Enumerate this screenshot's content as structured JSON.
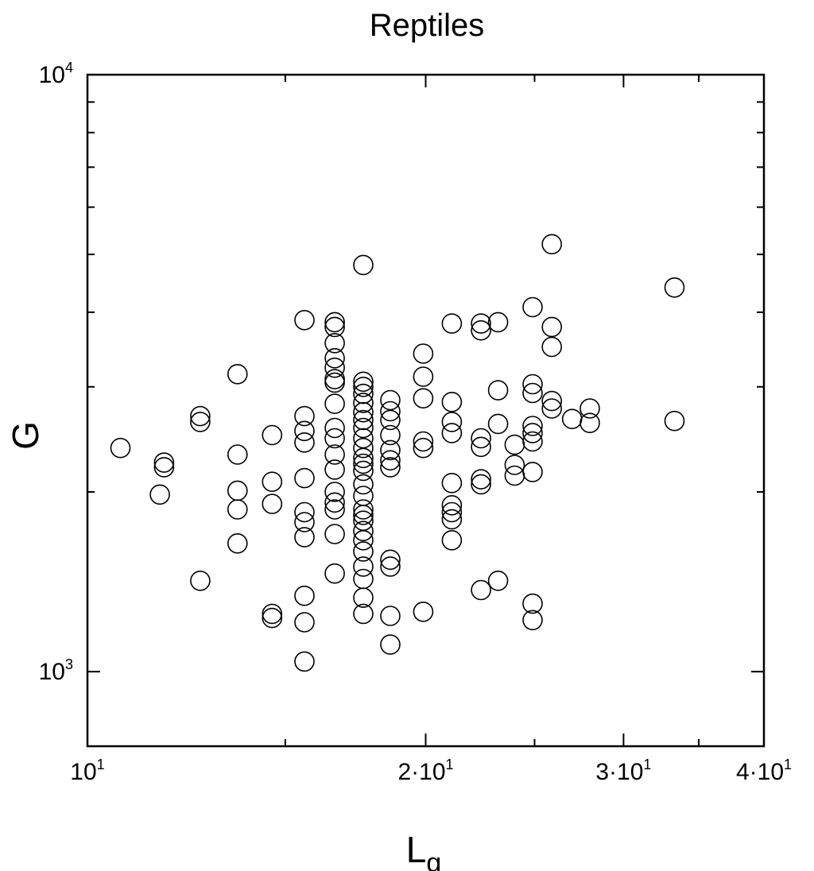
{
  "chart_data": {
    "type": "scatter",
    "title": "Reptiles",
    "xlabel": "L",
    "xlabel_subscript": "g",
    "ylabel": "G",
    "x_scale": "log",
    "y_scale": "log",
    "xlim": [
      10,
      40
    ],
    "ylim": [
      750,
      10000
    ],
    "grid": false,
    "marker": "open-circle",
    "marker_color": "#000000",
    "x_ticks": [
      {
        "value": 10,
        "base": "10",
        "sup": "1"
      },
      {
        "value": 20,
        "base": "2·10",
        "sup": "1"
      },
      {
        "value": 30,
        "base": "3·10",
        "sup": "1"
      },
      {
        "value": 40,
        "base": "4·10",
        "sup": "1"
      }
    ],
    "y_ticks": [
      {
        "value": 1000,
        "base": "10",
        "sup": "3"
      },
      {
        "value": 10000,
        "base": "10",
        "sup": "4"
      }
    ],
    "x_minor_ticks": [
      15,
      25,
      35
    ],
    "y_minor_ticks": [
      2000,
      3000,
      4000,
      5000,
      6000,
      7000,
      8000,
      9000
    ],
    "points": [
      [
        10.7,
        2370
      ],
      [
        11.7,
        2240
      ],
      [
        11.7,
        2200
      ],
      [
        11.6,
        1980
      ],
      [
        12.6,
        2680
      ],
      [
        12.6,
        2620
      ],
      [
        12.6,
        1420
      ],
      [
        13.6,
        3150
      ],
      [
        13.6,
        2310
      ],
      [
        13.6,
        2010
      ],
      [
        13.6,
        1870
      ],
      [
        13.6,
        1640
      ],
      [
        14.6,
        2490
      ],
      [
        14.6,
        2080
      ],
      [
        14.6,
        1910
      ],
      [
        15.6,
        3880
      ],
      [
        15.6,
        2680
      ],
      [
        15.6,
        2530
      ],
      [
        15.6,
        2420
      ],
      [
        15.6,
        2110
      ],
      [
        15.6,
        1850
      ],
      [
        15.6,
        1780
      ],
      [
        15.6,
        1680
      ],
      [
        15.6,
        1340
      ],
      [
        15.6,
        1210
      ],
      [
        15.6,
        1040
      ],
      [
        14.6,
        1250
      ],
      [
        14.6,
        1230
      ],
      [
        16.6,
        3850
      ],
      [
        16.6,
        3780
      ],
      [
        16.6,
        3550
      ],
      [
        16.6,
        3350
      ],
      [
        16.6,
        3230
      ],
      [
        16.6,
        3090
      ],
      [
        16.6,
        3050
      ],
      [
        16.6,
        2810
      ],
      [
        16.6,
        2560
      ],
      [
        16.6,
        2460
      ],
      [
        16.6,
        2310
      ],
      [
        16.6,
        2180
      ],
      [
        16.6,
        2000
      ],
      [
        16.6,
        1920
      ],
      [
        16.6,
        1870
      ],
      [
        16.6,
        1700
      ],
      [
        16.6,
        1460
      ],
      [
        17.6,
        4800
      ],
      [
        17.6,
        3060
      ],
      [
        17.6,
        3000
      ],
      [
        17.6,
        2920
      ],
      [
        17.6,
        2820
      ],
      [
        17.6,
        2720
      ],
      [
        17.6,
        2640
      ],
      [
        17.6,
        2560
      ],
      [
        17.6,
        2460
      ],
      [
        17.6,
        2370
      ],
      [
        17.6,
        2280
      ],
      [
        17.6,
        2230
      ],
      [
        17.6,
        2170
      ],
      [
        17.6,
        2060
      ],
      [
        17.6,
        1970
      ],
      [
        17.6,
        1870
      ],
      [
        17.6,
        1830
      ],
      [
        17.6,
        1790
      ],
      [
        17.6,
        1720
      ],
      [
        17.6,
        1660
      ],
      [
        17.6,
        1590
      ],
      [
        17.6,
        1500
      ],
      [
        17.6,
        1430
      ],
      [
        17.6,
        1330
      ],
      [
        17.6,
        1250
      ],
      [
        18.6,
        2850
      ],
      [
        18.6,
        2730
      ],
      [
        18.6,
        2640
      ],
      [
        18.6,
        2490
      ],
      [
        18.6,
        2350
      ],
      [
        18.6,
        2260
      ],
      [
        18.6,
        2200
      ],
      [
        18.6,
        1540
      ],
      [
        18.6,
        1500
      ],
      [
        18.6,
        1240
      ],
      [
        18.6,
        1110
      ],
      [
        19.9,
        3410
      ],
      [
        19.9,
        3120
      ],
      [
        19.9,
        2870
      ],
      [
        19.9,
        2430
      ],
      [
        19.9,
        2370
      ],
      [
        19.9,
        1260
      ],
      [
        21.1,
        3830
      ],
      [
        21.1,
        2830
      ],
      [
        21.1,
        2620
      ],
      [
        21.1,
        2510
      ],
      [
        21.1,
        2070
      ],
      [
        21.1,
        1900
      ],
      [
        21.1,
        1850
      ],
      [
        21.1,
        1800
      ],
      [
        21.1,
        1660
      ],
      [
        22.4,
        3830
      ],
      [
        22.4,
        3730
      ],
      [
        22.4,
        2460
      ],
      [
        22.4,
        2380
      ],
      [
        22.4,
        2100
      ],
      [
        22.4,
        2060
      ],
      [
        22.4,
        1370
      ],
      [
        23.2,
        3850
      ],
      [
        23.2,
        2960
      ],
      [
        23.2,
        2600
      ],
      [
        23.2,
        1420
      ],
      [
        24.0,
        2400
      ],
      [
        24.0,
        2220
      ],
      [
        24.0,
        2130
      ],
      [
        24.9,
        4080
      ],
      [
        24.9,
        3030
      ],
      [
        24.9,
        2930
      ],
      [
        24.9,
        2580
      ],
      [
        24.9,
        2510
      ],
      [
        24.9,
        2430
      ],
      [
        24.9,
        2160
      ],
      [
        24.9,
        1300
      ],
      [
        24.9,
        1220
      ],
      [
        25.9,
        5200
      ],
      [
        25.9,
        3780
      ],
      [
        25.9,
        3500
      ],
      [
        25.9,
        2840
      ],
      [
        25.9,
        2760
      ],
      [
        27.0,
        2650
      ],
      [
        28.0,
        2760
      ],
      [
        28.0,
        2610
      ],
      [
        33.3,
        4400
      ],
      [
        33.3,
        2630
      ]
    ]
  }
}
